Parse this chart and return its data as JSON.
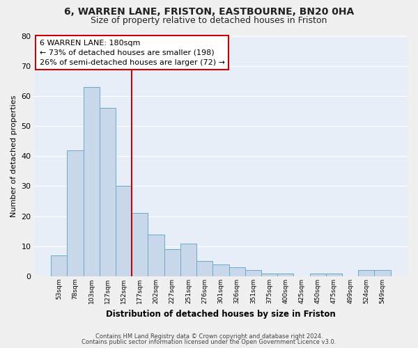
{
  "title1": "6, WARREN LANE, FRISTON, EASTBOURNE, BN20 0HA",
  "title2": "Size of property relative to detached houses in Friston",
  "xlabel": "Distribution of detached houses by size in Friston",
  "ylabel": "Number of detached properties",
  "x_labels": [
    "53sqm",
    "78sqm",
    "103sqm",
    "127sqm",
    "152sqm",
    "177sqm",
    "202sqm",
    "227sqm",
    "251sqm",
    "276sqm",
    "301sqm",
    "326sqm",
    "351sqm",
    "375sqm",
    "400sqm",
    "425sqm",
    "450sqm",
    "475sqm",
    "499sqm",
    "524sqm",
    "549sqm"
  ],
  "values": [
    7,
    42,
    63,
    56,
    30,
    21,
    14,
    9,
    11,
    5,
    4,
    3,
    2,
    1,
    1,
    0,
    1,
    1,
    0,
    2,
    2
  ],
  "bar_color": "#c8d8ea",
  "bar_edge_color": "#6aaac8",
  "vline_pos": 5.5,
  "vline_color": "#cc0000",
  "annotation_line1": "6 WARREN LANE: 180sqm",
  "annotation_line2": "← 73% of detached houses are smaller (198)",
  "annotation_line3": "26% of semi-detached houses are larger (72) →",
  "ylim": [
    0,
    80
  ],
  "yticks": [
    0,
    10,
    20,
    30,
    40,
    50,
    60,
    70,
    80
  ],
  "plot_bg_color": "#e8eef8",
  "fig_bg_color": "#f0f0f0",
  "grid_color": "#ffffff",
  "footer1": "Contains HM Land Registry data © Crown copyright and database right 2024.",
  "footer2": "Contains public sector information licensed under the Open Government Licence v3.0."
}
